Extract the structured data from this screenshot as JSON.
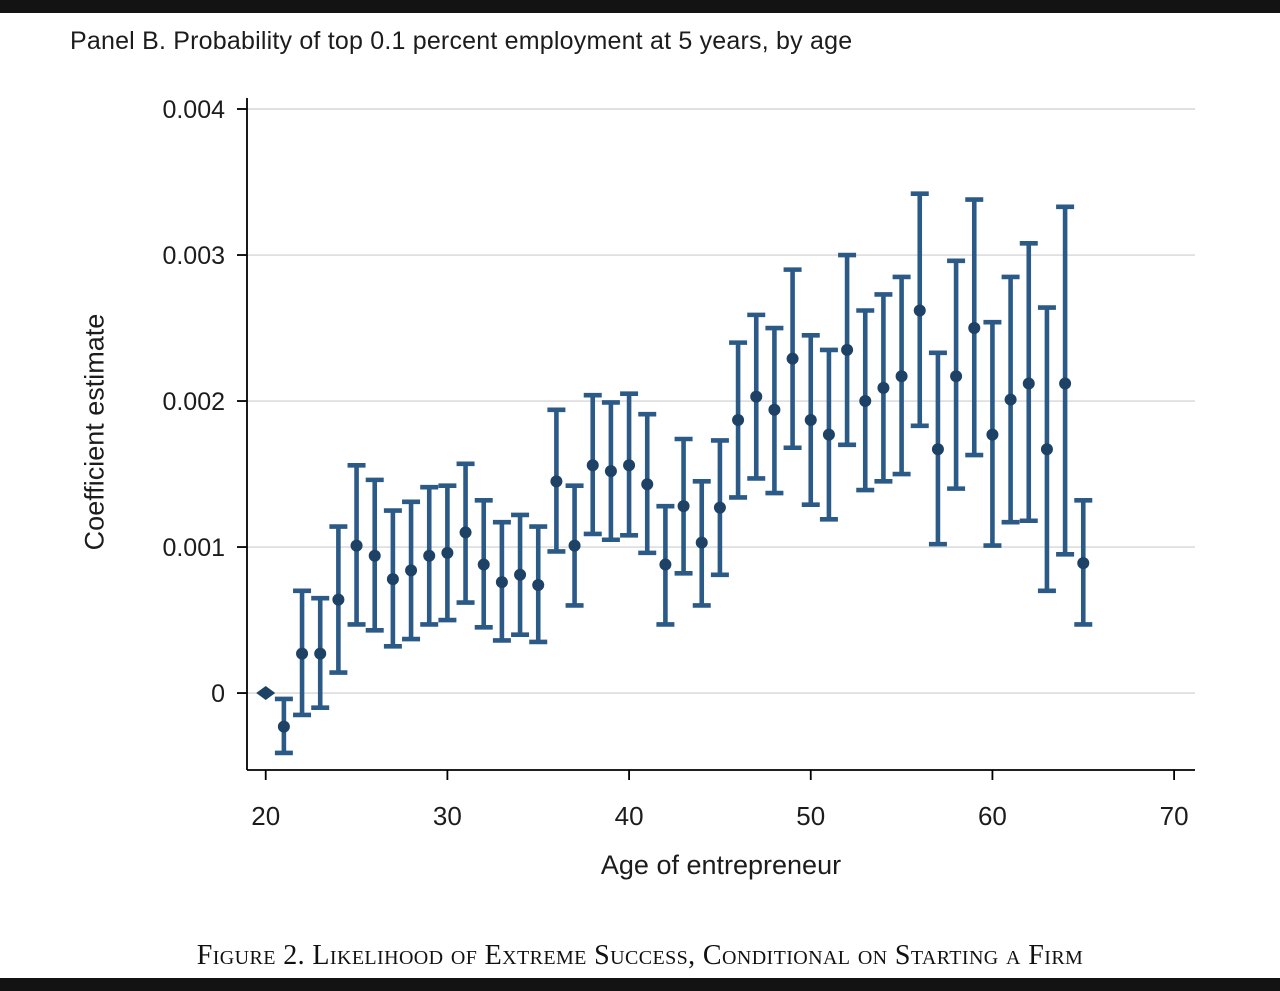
{
  "panel_title": "Panel B. Probability of top 0.1 percent employment at 5 years, by age",
  "figure_caption": "Figure 2. Likelihood of Extreme Success, Conditional on Starting a Firm",
  "chart_data": {
    "type": "scatter",
    "title": "Panel B. Probability of top 0.1 percent employment at 5 years, by age",
    "xlabel": "Age of entrepreneur",
    "ylabel": "Coefficient estimate",
    "x_ticks": [
      20,
      30,
      40,
      50,
      60,
      70
    ],
    "x_tick_labels": [
      "20",
      "30",
      "40",
      "50",
      "60",
      "70"
    ],
    "y_ticks": [
      0,
      0.001,
      0.002,
      0.003,
      0.004
    ],
    "y_tick_labels": [
      "0",
      "0.001",
      "0.002",
      "0.003",
      "0.004"
    ],
    "xlim": [
      18.97,
      71.15
    ],
    "ylim": [
      -0.000527,
      0.004
    ],
    "grid": "horizontal",
    "legend": "none",
    "colors": {
      "marker": "#1d4265",
      "error_bar": "#2b5a87",
      "gridline": "#d6d6d6",
      "axis": "#000000",
      "letterbox": "#131313"
    },
    "series": [
      {
        "name": "Coefficient estimate with 95% confidence interval",
        "points": [
          {
            "age": 20,
            "estimate": 0.0,
            "ci_low": null,
            "ci_high": null,
            "reference": true
          },
          {
            "age": 21,
            "estimate": -0.00023,
            "ci_low": -0.00041,
            "ci_high": -4e-05
          },
          {
            "age": 22,
            "estimate": 0.00027,
            "ci_low": -0.00015,
            "ci_high": 0.0007
          },
          {
            "age": 23,
            "estimate": 0.00027,
            "ci_low": -0.0001,
            "ci_high": 0.00065
          },
          {
            "age": 24,
            "estimate": 0.00064,
            "ci_low": 0.00014,
            "ci_high": 0.00114
          },
          {
            "age": 25,
            "estimate": 0.00101,
            "ci_low": 0.00047,
            "ci_high": 0.00156
          },
          {
            "age": 26,
            "estimate": 0.00094,
            "ci_low": 0.00043,
            "ci_high": 0.00146
          },
          {
            "age": 27,
            "estimate": 0.00078,
            "ci_low": 0.00032,
            "ci_high": 0.00125
          },
          {
            "age": 28,
            "estimate": 0.00084,
            "ci_low": 0.00037,
            "ci_high": 0.00131
          },
          {
            "age": 29,
            "estimate": 0.00094,
            "ci_low": 0.00047,
            "ci_high": 0.00141
          },
          {
            "age": 30,
            "estimate": 0.00096,
            "ci_low": 0.0005,
            "ci_high": 0.00142
          },
          {
            "age": 31,
            "estimate": 0.0011,
            "ci_low": 0.00062,
            "ci_high": 0.00157
          },
          {
            "age": 32,
            "estimate": 0.00088,
            "ci_low": 0.00045,
            "ci_high": 0.00132
          },
          {
            "age": 33,
            "estimate": 0.00076,
            "ci_low": 0.00036,
            "ci_high": 0.00117
          },
          {
            "age": 34,
            "estimate": 0.00081,
            "ci_low": 0.0004,
            "ci_high": 0.00122
          },
          {
            "age": 35,
            "estimate": 0.00074,
            "ci_low": 0.00035,
            "ci_high": 0.00114
          },
          {
            "age": 36,
            "estimate": 0.00145,
            "ci_low": 0.00097,
            "ci_high": 0.00194
          },
          {
            "age": 37,
            "estimate": 0.00101,
            "ci_low": 0.0006,
            "ci_high": 0.00142
          },
          {
            "age": 38,
            "estimate": 0.00156,
            "ci_low": 0.00109,
            "ci_high": 0.00204
          },
          {
            "age": 39,
            "estimate": 0.00152,
            "ci_low": 0.00105,
            "ci_high": 0.00199
          },
          {
            "age": 40,
            "estimate": 0.00156,
            "ci_low": 0.00108,
            "ci_high": 0.00205
          },
          {
            "age": 41,
            "estimate": 0.00143,
            "ci_low": 0.00096,
            "ci_high": 0.00191
          },
          {
            "age": 42,
            "estimate": 0.00088,
            "ci_low": 0.00047,
            "ci_high": 0.00128
          },
          {
            "age": 43,
            "estimate": 0.00128,
            "ci_low": 0.00082,
            "ci_high": 0.00174
          },
          {
            "age": 44,
            "estimate": 0.00103,
            "ci_low": 0.0006,
            "ci_high": 0.00145
          },
          {
            "age": 45,
            "estimate": 0.00127,
            "ci_low": 0.00081,
            "ci_high": 0.00173
          },
          {
            "age": 46,
            "estimate": 0.00187,
            "ci_low": 0.00134,
            "ci_high": 0.0024
          },
          {
            "age": 47,
            "estimate": 0.00203,
            "ci_low": 0.00147,
            "ci_high": 0.00259
          },
          {
            "age": 48,
            "estimate": 0.00194,
            "ci_low": 0.00137,
            "ci_high": 0.0025
          },
          {
            "age": 49,
            "estimate": 0.00229,
            "ci_low": 0.00168,
            "ci_high": 0.0029
          },
          {
            "age": 50,
            "estimate": 0.00187,
            "ci_low": 0.00129,
            "ci_high": 0.00245
          },
          {
            "age": 51,
            "estimate": 0.00177,
            "ci_low": 0.00119,
            "ci_high": 0.00235
          },
          {
            "age": 52,
            "estimate": 0.00235,
            "ci_low": 0.0017,
            "ci_high": 0.003
          },
          {
            "age": 53,
            "estimate": 0.002,
            "ci_low": 0.00139,
            "ci_high": 0.00262
          },
          {
            "age": 54,
            "estimate": 0.00209,
            "ci_low": 0.00145,
            "ci_high": 0.00273
          },
          {
            "age": 55,
            "estimate": 0.00217,
            "ci_low": 0.0015,
            "ci_high": 0.00285
          },
          {
            "age": 56,
            "estimate": 0.00262,
            "ci_low": 0.00183,
            "ci_high": 0.00342
          },
          {
            "age": 57,
            "estimate": 0.00167,
            "ci_low": 0.00102,
            "ci_high": 0.00233
          },
          {
            "age": 58,
            "estimate": 0.00217,
            "ci_low": 0.0014,
            "ci_high": 0.00296
          },
          {
            "age": 59,
            "estimate": 0.0025,
            "ci_low": 0.00163,
            "ci_high": 0.00338
          },
          {
            "age": 60,
            "estimate": 0.00177,
            "ci_low": 0.00101,
            "ci_high": 0.00254
          },
          {
            "age": 61,
            "estimate": 0.00201,
            "ci_low": 0.00117,
            "ci_high": 0.00285
          },
          {
            "age": 62,
            "estimate": 0.00212,
            "ci_low": 0.00118,
            "ci_high": 0.00308
          },
          {
            "age": 63,
            "estimate": 0.00167,
            "ci_low": 0.0007,
            "ci_high": 0.00264
          },
          {
            "age": 64,
            "estimate": 0.00212,
            "ci_low": 0.00095,
            "ci_high": 0.00333
          },
          {
            "age": 65,
            "estimate": 0.00089,
            "ci_low": 0.00047,
            "ci_high": 0.00132
          }
        ]
      }
    ]
  }
}
